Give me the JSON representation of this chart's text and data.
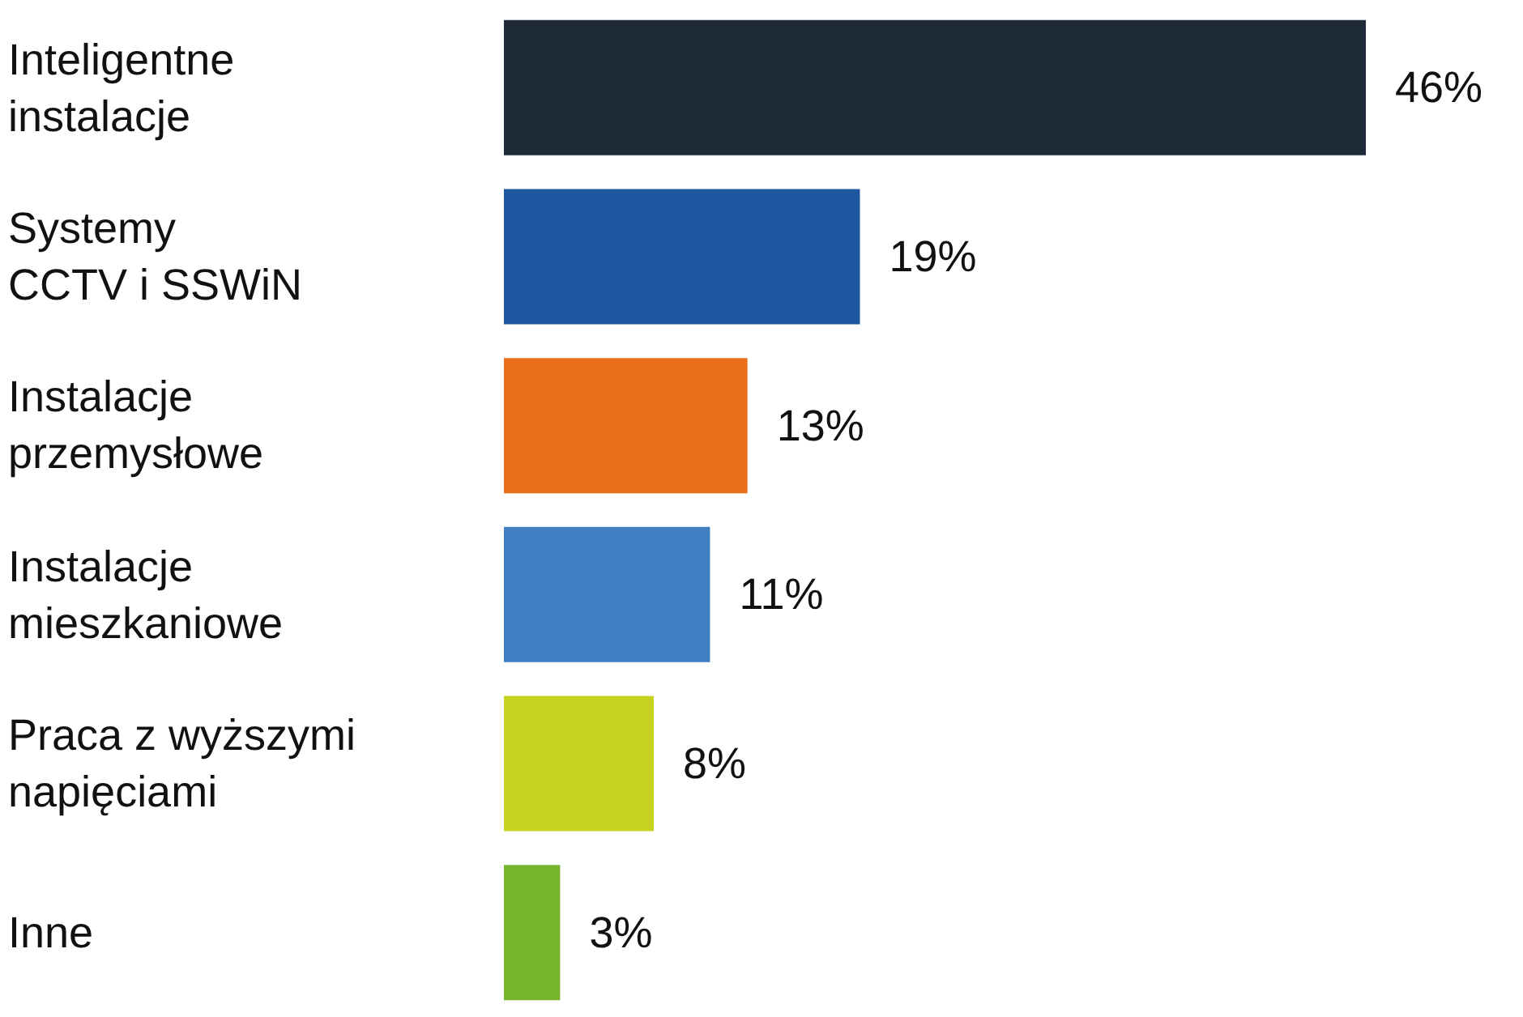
{
  "chart_data": {
    "type": "bar",
    "orientation": "horizontal",
    "categories": [
      "Inteligentne\ninstalacje",
      "Systemy\nCCTV i SSWiN",
      "Instalacje\nprzemysłowe",
      "Instalacje\nmieszkaniowe",
      "Praca z wyższymi\nnapięciami",
      "Inne"
    ],
    "values": [
      46,
      19,
      13,
      11,
      8,
      3
    ],
    "colors": [
      "#1f2a38",
      "#1e56a0",
      "#eb6e1a",
      "#3f7fc1",
      "#c8d321",
      "#77b52f"
    ],
    "value_labels": [
      "46%",
      "19%",
      "13%",
      "11%",
      "8%",
      "3%"
    ]
  }
}
